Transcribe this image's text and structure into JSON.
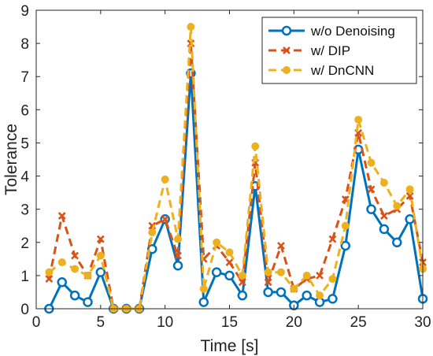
{
  "chart_data": {
    "type": "line",
    "xlabel": "Time [s]",
    "ylabel": "Tolerance",
    "xlim": [
      0,
      30
    ],
    "ylim": [
      0,
      9
    ],
    "xticks": [
      0,
      5,
      10,
      15,
      20,
      25,
      30
    ],
    "yticks": [
      0,
      1,
      2,
      3,
      4,
      5,
      6,
      7,
      8,
      9
    ],
    "grid": false,
    "legend_position": "top-right",
    "x": [
      1,
      2,
      3,
      4,
      5,
      6,
      7,
      8,
      9,
      10,
      11,
      12,
      13,
      14,
      15,
      16,
      17,
      18,
      19,
      20,
      21,
      22,
      23,
      24,
      25,
      26,
      27,
      28,
      29,
      30
    ],
    "series": [
      {
        "name": "w/o Denoising",
        "color": "#0072BD",
        "style": "solid",
        "marker": "circle",
        "values": [
          0,
          0.8,
          0.4,
          0.2,
          1.1,
          0,
          0,
          0,
          1.8,
          2.7,
          1.3,
          7.1,
          0.2,
          1.1,
          1.0,
          0.4,
          3.7,
          0.5,
          0.5,
          0.1,
          0.4,
          0.2,
          0.3,
          1.9,
          4.8,
          3.0,
          2.4,
          2.0,
          2.7,
          0.3
        ]
      },
      {
        "name": "w/ DIP",
        "color": "#D95319",
        "style": "dashed",
        "marker": "x",
        "values": [
          0.9,
          2.8,
          1.6,
          1.0,
          2.1,
          0,
          0,
          0,
          2.5,
          2.7,
          1.6,
          8.0,
          1.5,
          1.9,
          1.4,
          0.8,
          4.4,
          0.8,
          1.9,
          0.6,
          0.9,
          1.0,
          2.1,
          3.3,
          5.3,
          3.6,
          2.8,
          3.0,
          3.4,
          1.4
        ]
      },
      {
        "name": "w/ DnCNN",
        "color": "#EDB120",
        "style": "dashed",
        "marker": "dot",
        "values": [
          1.1,
          1.4,
          1.2,
          1.0,
          1.6,
          0,
          0,
          0,
          2.3,
          3.9,
          2.1,
          8.5,
          0.6,
          2.0,
          1.7,
          1.0,
          4.9,
          1.1,
          1.1,
          0.6,
          1.0,
          0.4,
          0.9,
          2.5,
          5.7,
          4.4,
          3.8,
          3.1,
          3.6,
          1.2
        ]
      }
    ]
  }
}
